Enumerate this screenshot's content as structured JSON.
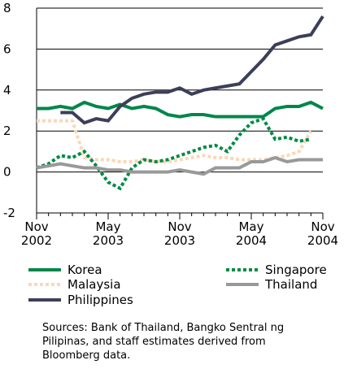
{
  "chart_data": {
    "type": "line",
    "x": [
      "2002-11",
      "2002-12",
      "2003-01",
      "2003-02",
      "2003-03",
      "2003-04",
      "2003-05",
      "2003-06",
      "2003-07",
      "2003-08",
      "2003-09",
      "2003-10",
      "2003-11",
      "2003-12",
      "2004-01",
      "2004-02",
      "2004-03",
      "2004-04",
      "2004-05",
      "2004-06",
      "2004-07",
      "2004-08",
      "2004-09",
      "2004-10",
      "2004-11"
    ],
    "xticks": [
      {
        "value": "2002-11",
        "label": "Nov 2002"
      },
      {
        "value": "2003-05",
        "label": "May 2003"
      },
      {
        "value": "2003-11",
        "label": "Nov 2003"
      },
      {
        "value": "2004-05",
        "label": "May 2004"
      },
      {
        "value": "2004-11",
        "label": "Nov 2004"
      }
    ],
    "ylim": [
      -2,
      8
    ],
    "yticks": [
      -2,
      0,
      2,
      4,
      6,
      8
    ],
    "grid": true,
    "series": [
      {
        "name": "Korea",
        "color": "#00864a",
        "dash": false,
        "values": [
          3.1,
          3.1,
          3.2,
          3.1,
          3.4,
          3.2,
          3.1,
          3.3,
          3.1,
          3.2,
          3.1,
          2.8,
          2.7,
          2.8,
          2.8,
          2.7,
          2.7,
          2.7,
          2.7,
          2.7,
          3.1,
          3.2,
          3.2,
          3.4,
          3.1
        ]
      },
      {
        "name": "Malaysia",
        "color": "#f8d8b8",
        "dash": true,
        "values": [
          2.5,
          2.5,
          2.5,
          2.5,
          0.7,
          0.6,
          0.6,
          0.5,
          0.5,
          0.6,
          0.5,
          0.5,
          0.6,
          0.7,
          0.8,
          0.7,
          0.7,
          0.6,
          0.6,
          0.6,
          0.7,
          0.8,
          1.0,
          2.0,
          null
        ]
      },
      {
        "name": "Philippines",
        "color": "#3b3f58",
        "dash": false,
        "values": [
          null,
          null,
          2.9,
          2.9,
          2.4,
          2.6,
          2.5,
          3.2,
          3.6,
          3.8,
          3.9,
          3.9,
          4.1,
          3.8,
          4.0,
          4.1,
          4.2,
          4.3,
          4.9,
          5.5,
          6.2,
          6.4,
          6.6,
          6.7,
          7.6
        ]
      },
      {
        "name": "Singapore",
        "color": "#008a45",
        "dash": true,
        "values": [
          0.2,
          0.4,
          0.8,
          0.7,
          1.0,
          0.3,
          -0.5,
          -0.8,
          0.2,
          0.6,
          0.5,
          0.6,
          0.8,
          1.0,
          1.2,
          1.3,
          1.0,
          1.8,
          2.4,
          2.6,
          1.6,
          1.7,
          1.5,
          1.6,
          null
        ]
      },
      {
        "name": "Thailand",
        "color": "#999999",
        "dash": false,
        "values": [
          0.2,
          0.3,
          0.4,
          0.3,
          0.2,
          0.2,
          0.1,
          0.1,
          0.0,
          0.0,
          0.0,
          0.0,
          0.1,
          0.0,
          -0.1,
          0.2,
          0.2,
          0.2,
          0.5,
          0.5,
          0.7,
          0.5,
          0.6,
          0.6,
          0.6
        ]
      }
    ],
    "source": "Sources: Bank of Thailand, Bangko Sentral ng Pilipinas, and staff estimates derived from Bloomberg data."
  }
}
